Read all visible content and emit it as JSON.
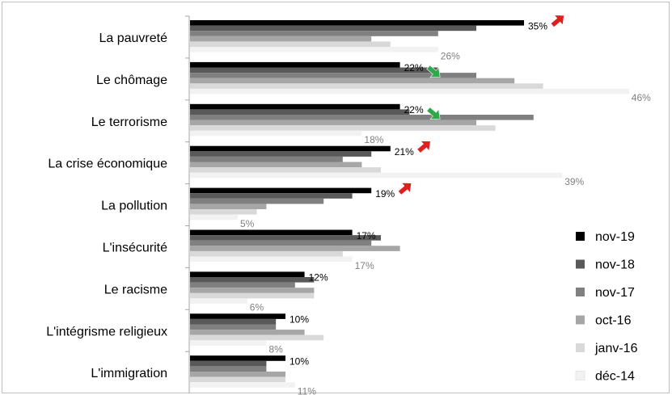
{
  "chart_data": {
    "type": "bar",
    "orientation": "horizontal",
    "categories": [
      "La pauvreté",
      "Le chômage",
      "Le terrorisme",
      "La crise économique",
      "La pollution",
      "L'insécurité",
      "Le racisme",
      "L'intégrisme religieux",
      "L'immigration"
    ],
    "series": [
      {
        "name": "nov-19",
        "color": "#000000",
        "values": [
          35,
          22,
          22,
          21,
          19,
          17,
          12,
          10,
          10
        ]
      },
      {
        "name": "nov-18",
        "color": "#595959",
        "values": [
          30,
          26,
          23,
          19,
          17,
          20,
          13,
          9,
          8
        ]
      },
      {
        "name": "nov-17",
        "color": "#808080",
        "values": [
          26,
          30,
          36,
          16,
          14,
          19,
          11,
          9,
          8
        ]
      },
      {
        "name": "oct-16",
        "color": "#a6a6a6",
        "values": [
          19,
          34,
          30,
          18,
          8,
          22,
          13,
          12,
          10
        ]
      },
      {
        "name": "janv-16",
        "color": "#d9d9d9",
        "values": [
          21,
          37,
          32,
          20,
          7,
          16,
          13,
          14,
          10
        ]
      },
      {
        "name": "déc-14",
        "color": "#f2f2f2",
        "values": [
          26,
          46,
          18,
          39,
          5,
          17,
          6,
          8,
          11
        ]
      }
    ],
    "data_labels": [
      {
        "category": 0,
        "series": 0,
        "text": "35%",
        "color": "#000000",
        "arrow": "up"
      },
      {
        "category": 0,
        "series": 5,
        "text": "26%",
        "color": "#808080"
      },
      {
        "category": 1,
        "series": 0,
        "text": "22%",
        "color": "#000000",
        "arrow": "down"
      },
      {
        "category": 1,
        "series": 5,
        "text": "46%",
        "color": "#808080"
      },
      {
        "category": 2,
        "series": 0,
        "text": "22%",
        "color": "#000000",
        "arrow": "down"
      },
      {
        "category": 2,
        "series": 5,
        "text": "18%",
        "color": "#808080"
      },
      {
        "category": 3,
        "series": 0,
        "text": "21%",
        "color": "#000000",
        "arrow": "up"
      },
      {
        "category": 3,
        "series": 5,
        "text": "39%",
        "color": "#808080"
      },
      {
        "category": 4,
        "series": 0,
        "text": "19%",
        "color": "#000000",
        "arrow": "up"
      },
      {
        "category": 4,
        "series": 5,
        "text": "5%",
        "color": "#808080"
      },
      {
        "category": 5,
        "series": 0,
        "text": "17%",
        "color": "#000000"
      },
      {
        "category": 5,
        "series": 5,
        "text": "17%",
        "color": "#808080"
      },
      {
        "category": 6,
        "series": 0,
        "text": "12%",
        "color": "#000000"
      },
      {
        "category": 6,
        "series": 5,
        "text": "6%",
        "color": "#808080"
      },
      {
        "category": 7,
        "series": 0,
        "text": "10%",
        "color": "#000000"
      },
      {
        "category": 7,
        "series": 5,
        "text": "8%",
        "color": "#808080"
      },
      {
        "category": 8,
        "series": 0,
        "text": "10%",
        "color": "#000000"
      },
      {
        "category": 8,
        "series": 5,
        "text": "11%",
        "color": "#808080"
      }
    ],
    "arrow_colors": {
      "up": "#e02020",
      "down": "#2ea84a"
    },
    "legend_position": "bottom-right",
    "grid": false
  }
}
